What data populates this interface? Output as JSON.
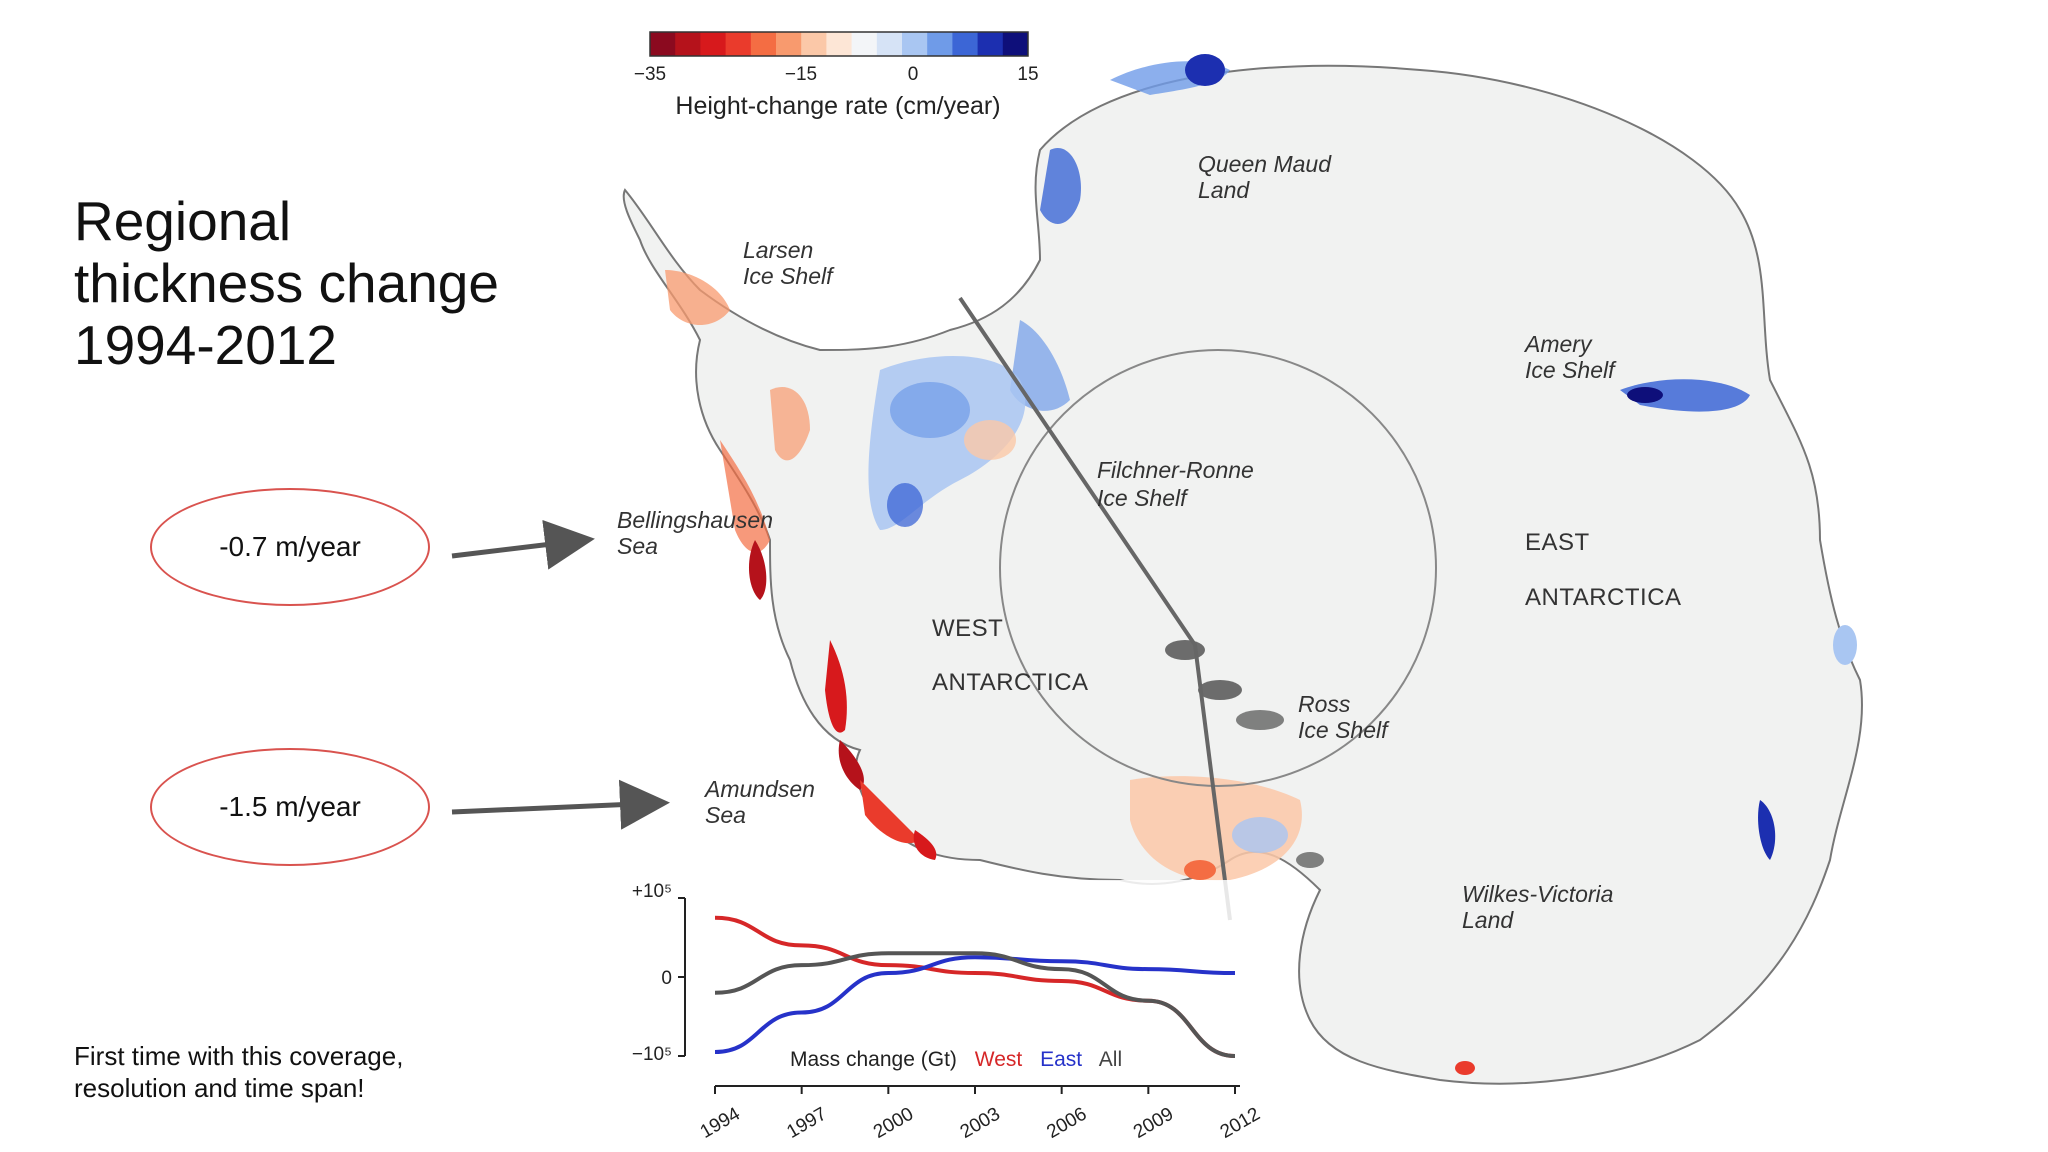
{
  "slide": {
    "title": "Regional\nthickness change\n1994-2012",
    "callouts": [
      {
        "label": "-0.7 m/year",
        "target": "Bellingshausen Sea"
      },
      {
        "label": "-1.5 m/year",
        "target": "Amundsen Sea"
      }
    ],
    "note": "First time with this coverage,\nresolution and time span!"
  },
  "colorbar": {
    "title": "Height-change rate (cm/year)",
    "ticks": [
      "−35",
      "−15",
      "0",
      "15"
    ],
    "min": -35,
    "max": 15,
    "colors": [
      "#8b0a1f",
      "#b5121b",
      "#d7191c",
      "#ea3b2c",
      "#f46d43",
      "#f89a6e",
      "#fbc8a8",
      "#fde6d6",
      "#f3f5f8",
      "#d6e3f6",
      "#a9c6f2",
      "#6f9be8",
      "#3c66d6",
      "#1c2fb0",
      "#0e0f7a"
    ]
  },
  "map_labels": [
    {
      "text": "Queen Maud",
      "style": "italic"
    },
    {
      "text": "Land",
      "style": "italic"
    },
    {
      "text": "Larsen",
      "style": "italic"
    },
    {
      "text": "Ice Shelf",
      "style": "italic"
    },
    {
      "text": "Amery",
      "style": "italic"
    },
    {
      "text": "Ice Shelf",
      "style": "italic"
    },
    {
      "text": "Filchner-Ronne",
      "style": "italic"
    },
    {
      "text": "Ice Shelf",
      "style": "italic"
    },
    {
      "text": "Bellingshausen",
      "style": "italic"
    },
    {
      "text": "Sea",
      "style": "italic"
    },
    {
      "text": "EAST",
      "style": "normal"
    },
    {
      "text": "ANTARCTICA",
      "style": "normal"
    },
    {
      "text": "WEST",
      "style": "normal"
    },
    {
      "text": "ANTARCTICA",
      "style": "normal"
    },
    {
      "text": "Ross",
      "style": "italic"
    },
    {
      "text": "Ice Shelf",
      "style": "italic"
    },
    {
      "text": "Amundsen",
      "style": "italic"
    },
    {
      "text": "Sea",
      "style": "italic"
    },
    {
      "text": "Wilkes-Victoria",
      "style": "italic"
    },
    {
      "text": "Land",
      "style": "italic"
    }
  ],
  "inset_chart": {
    "legend_prefix": "Mass change (Gt)",
    "series_names": [
      "West",
      "East",
      "All"
    ],
    "series_colors": [
      "#d62728",
      "#2632c9",
      "#555555"
    ],
    "y_ticks": [
      "+10⁵",
      "0",
      "−10⁵"
    ],
    "x_ticks": [
      "1994",
      "1997",
      "2000",
      "2003",
      "2006",
      "2009",
      "2012"
    ],
    "chart_data": {
      "type": "line",
      "x": [
        1994,
        1997,
        2000,
        2003,
        2006,
        2009,
        2012
      ],
      "ylim": [
        -1,
        1
      ],
      "series": [
        {
          "name": "West",
          "values": [
            0.75,
            0.4,
            0.15,
            0.05,
            -0.05,
            -0.3,
            -1.0
          ]
        },
        {
          "name": "East",
          "values": [
            -0.95,
            -0.45,
            0.05,
            0.25,
            0.2,
            0.1,
            0.05
          ]
        },
        {
          "name": "All",
          "values": [
            -0.2,
            0.15,
            0.3,
            0.3,
            0.1,
            -0.3,
            -1.0
          ]
        }
      ]
    }
  }
}
